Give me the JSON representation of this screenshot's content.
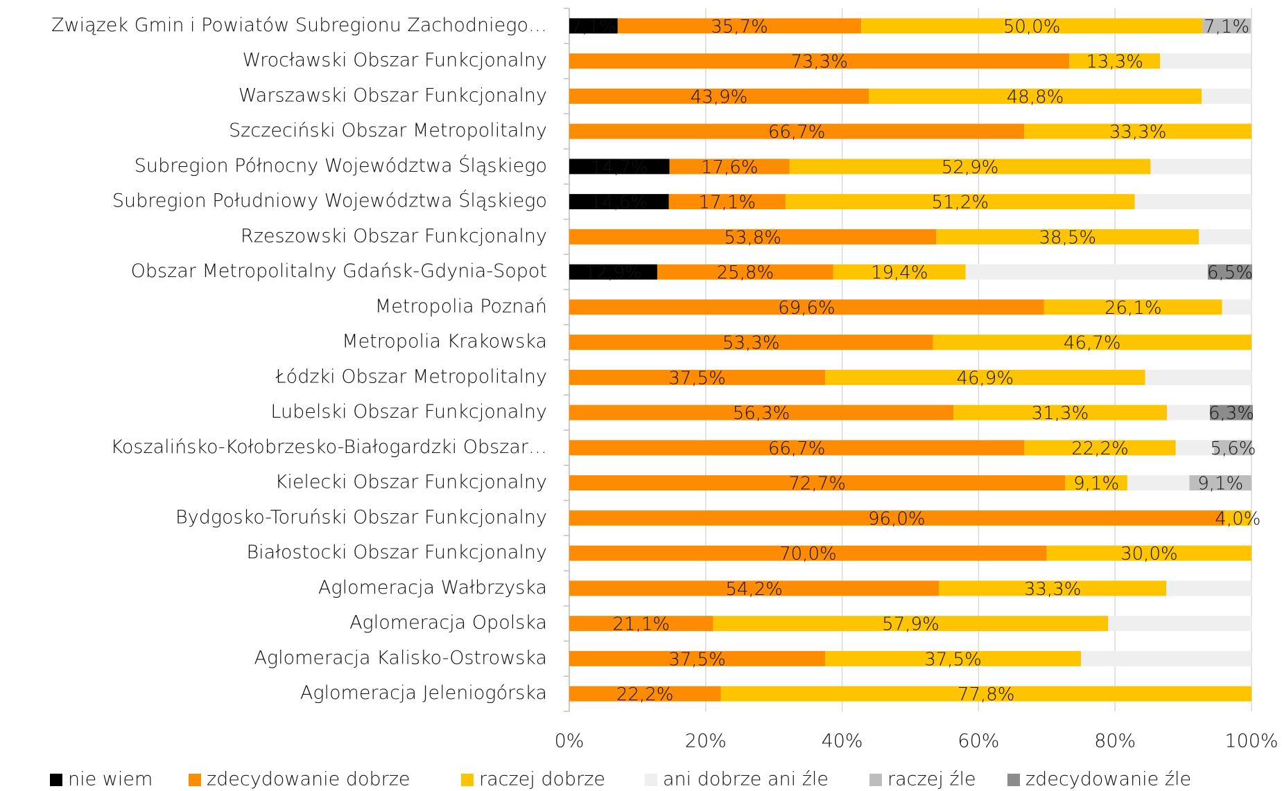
{
  "chart_data": {
    "type": "stacked_barh",
    "categories": [
      "Związek Gmin i Powiatów Subregionu Zachodniego…",
      "Wrocławski Obszar Funkcjonalny",
      "Warszawski Obszar Funkcjonalny",
      "Szczeciński Obszar Metropolitalny",
      "Subregion Północny Województwa Śląskiego",
      "Subregion Południowy Województwa Śląskiego",
      "Rzeszowski Obszar Funkcjonalny",
      "Obszar Metropolitalny Gdańsk-Gdynia-Sopot",
      "Metropolia Poznań",
      "Metropolia Krakowska",
      "Łódzki Obszar Metropolitalny",
      "Lubelski Obszar Funkcjonalny",
      "Koszalińsko-Kołobrzesko-Białogardzki Obszar…",
      "Kielecki Obszar Funkcjonalny",
      "Bydgosko-Toruński Obszar Funkcjonalny",
      "Białostocki Obszar Funkcjonalny",
      "Aglomeracja Wałbrzyska",
      "Aglomeracja Opolska",
      "Aglomeracja Kalisko-Ostrowska",
      "Aglomeracja Jeleniogórska"
    ],
    "series": [
      {
        "name": "nie wiem",
        "color": "#000000",
        "values": [
          7.1,
          0,
          0,
          0,
          14.7,
          14.6,
          0,
          12.9,
          0,
          0,
          0,
          0,
          0,
          0,
          0,
          0,
          0,
          0,
          0,
          0
        ],
        "value_labels": [
          "7,1%",
          null,
          null,
          null,
          "14,7%",
          "14,6%",
          null,
          "12,9%",
          null,
          null,
          null,
          null,
          null,
          null,
          null,
          null,
          null,
          null,
          null,
          null
        ]
      },
      {
        "name": "zdecydowanie dobrze",
        "color": "#fd8c02",
        "values": [
          35.7,
          73.3,
          43.9,
          66.7,
          17.6,
          17.1,
          53.8,
          25.8,
          69.6,
          53.3,
          37.5,
          56.3,
          66.7,
          72.7,
          96.0,
          70.0,
          54.2,
          21.1,
          37.5,
          22.2
        ],
        "value_labels": [
          "35,7%",
          "73,3%",
          "43,9%",
          "66,7%",
          "17,6%",
          "17,1%",
          "53,8%",
          "25,8%",
          "69,6%",
          "53,3%",
          "37,5%",
          "56,3%",
          "66,7%",
          "72,7%",
          "96,0%",
          "70,0%",
          "54,2%",
          "21,1%",
          "37,5%",
          "22,2%"
        ]
      },
      {
        "name": "raczej dobrze",
        "color": "#ffc400",
        "values": [
          50.0,
          13.3,
          48.8,
          33.3,
          52.9,
          51.2,
          38.5,
          19.4,
          26.1,
          46.7,
          46.9,
          31.3,
          22.2,
          9.1,
          4.0,
          30.0,
          33.3,
          57.9,
          37.5,
          77.8
        ],
        "value_labels": [
          "50,0%",
          "13,3%",
          "48,8%",
          "33,3%",
          "52,9%",
          "51,2%",
          "38,5%",
          "19,4%",
          "26,1%",
          "46,7%",
          "46,9%",
          "31,3%",
          "22,2%",
          "9,1%",
          "4,0%",
          "30,0%",
          "33,3%",
          "57,9%",
          "37,5%",
          "77,8%"
        ]
      },
      {
        "name": "ani dobrze ani źle",
        "color": "#efefef",
        "values": [
          0,
          13.3,
          7.3,
          0,
          14.7,
          17.1,
          7.7,
          35.5,
          4.3,
          0,
          15.6,
          6.3,
          5.6,
          9.1,
          0,
          0,
          12.5,
          21.1,
          25.0,
          0
        ],
        "value_labels": [
          null,
          null,
          null,
          null,
          null,
          null,
          null,
          null,
          null,
          null,
          null,
          null,
          null,
          null,
          null,
          null,
          null,
          null,
          null,
          null
        ]
      },
      {
        "name": "raczej źle",
        "color": "#bdbdbd",
        "values": [
          7.1,
          0,
          0,
          0,
          0,
          0,
          0,
          0,
          0,
          0,
          0,
          0,
          5.6,
          9.1,
          0,
          0,
          0,
          0,
          0,
          0
        ],
        "value_labels": [
          "7,1%",
          null,
          null,
          null,
          null,
          null,
          null,
          null,
          null,
          null,
          null,
          null,
          "5,6%",
          "9,1%",
          null,
          null,
          null,
          null,
          null,
          null
        ]
      },
      {
        "name": "zdecydowanie źle",
        "color": "#8c8c8c",
        "values": [
          0,
          0,
          0,
          0,
          0,
          0,
          0,
          6.5,
          0,
          0,
          0,
          6.3,
          0,
          0,
          0,
          0,
          0,
          0,
          0,
          0
        ],
        "value_labels": [
          null,
          null,
          null,
          null,
          null,
          null,
          null,
          "6,5%",
          null,
          null,
          null,
          "6,3%",
          null,
          null,
          null,
          null,
          null,
          null,
          null,
          null
        ]
      }
    ],
    "xlim": [
      0,
      100
    ],
    "xticks": [
      {
        "value": 0,
        "label": "0%"
      },
      {
        "value": 20,
        "label": "20%"
      },
      {
        "value": 40,
        "label": "40%"
      },
      {
        "value": 60,
        "label": "60%"
      },
      {
        "value": 80,
        "label": "80%"
      },
      {
        "value": 100,
        "label": "100%"
      }
    ],
    "grid": true,
    "legend": "bottom"
  }
}
